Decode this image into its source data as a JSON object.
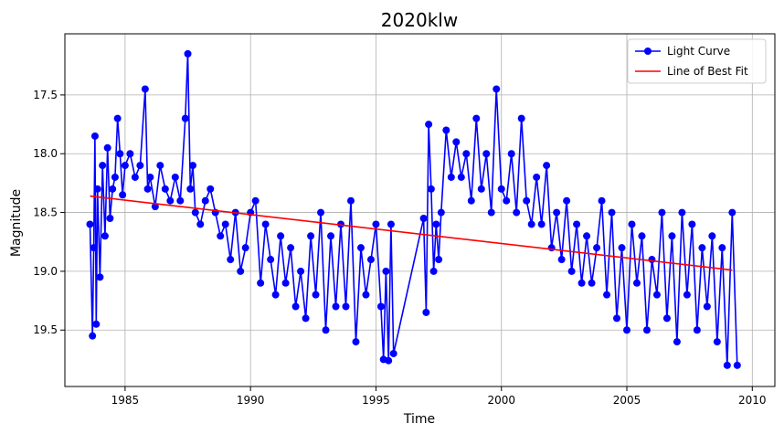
{
  "chart_data": {
    "type": "line",
    "title": "2020klw",
    "xlabel": "Time",
    "ylabel": "Magnitude",
    "xlim": [
      1982.6,
      2010.9
    ],
    "ylim": [
      19.98,
      16.98
    ],
    "y_inverted": true,
    "grid": true,
    "legend_position": "top-right",
    "x_ticks": [
      1985,
      1990,
      1995,
      2000,
      2005,
      2010
    ],
    "x_tick_labels": [
      "1985",
      "1990",
      "1995",
      "2000",
      "2005",
      "2010"
    ],
    "y_ticks": [
      17.5,
      18.0,
      18.5,
      19.0,
      19.5
    ],
    "y_tick_labels": [
      "17.5",
      "18.0",
      "18.5",
      "19.0",
      "19.5"
    ],
    "series": [
      {
        "name": "Light Curve",
        "style": "line-markers",
        "color": "#0000ff",
        "x": [
          1983.6,
          1983.7,
          1983.75,
          1983.8,
          1983.85,
          1983.9,
          1984.0,
          1984.1,
          1984.2,
          1984.3,
          1984.4,
          1984.5,
          1984.6,
          1984.7,
          1984.8,
          1984.9,
          1985.0,
          1985.2,
          1985.4,
          1985.6,
          1985.8,
          1985.9,
          1986.0,
          1986.2,
          1986.4,
          1986.6,
          1986.8,
          1987.0,
          1987.2,
          1987.4,
          1987.5,
          1987.6,
          1987.7,
          1987.8,
          1988.0,
          1988.2,
          1988.4,
          1988.6,
          1988.8,
          1989.0,
          1989.2,
          1989.4,
          1989.6,
          1989.8,
          1990.0,
          1990.2,
          1990.4,
          1990.6,
          1990.8,
          1991.0,
          1991.2,
          1991.4,
          1991.6,
          1991.8,
          1992.0,
          1992.2,
          1992.4,
          1992.6,
          1992.8,
          1993.0,
          1993.2,
          1993.4,
          1993.6,
          1993.8,
          1994.0,
          1994.2,
          1994.4,
          1994.6,
          1994.8,
          1995.0,
          1995.2,
          1995.3,
          1995.4,
          1995.5,
          1995.6,
          1995.7,
          1996.9,
          1997.0,
          1997.1,
          1997.2,
          1997.3,
          1997.4,
          1997.5,
          1997.6,
          1997.8,
          1998.0,
          1998.2,
          1998.4,
          1998.6,
          1998.8,
          1999.0,
          1999.2,
          1999.4,
          1999.6,
          1999.8,
          2000.0,
          2000.2,
          2000.4,
          2000.6,
          2000.8,
          2001.0,
          2001.2,
          2001.4,
          2001.6,
          2001.8,
          2002.0,
          2002.2,
          2002.4,
          2002.6,
          2002.8,
          2003.0,
          2003.2,
          2003.4,
          2003.6,
          2003.8,
          2004.0,
          2004.2,
          2004.4,
          2004.6,
          2004.8,
          2005.0,
          2005.2,
          2005.4,
          2005.6,
          2005.8,
          2006.0,
          2006.2,
          2006.4,
          2006.6,
          2006.8,
          2007.0,
          2007.2,
          2007.4,
          2007.6,
          2007.8,
          2008.0,
          2008.2,
          2008.4,
          2008.6,
          2008.8,
          2009.0,
          2009.2,
          2009.4
        ],
        "y": [
          18.6,
          19.55,
          18.8,
          17.85,
          19.45,
          18.3,
          19.05,
          18.1,
          18.7,
          17.95,
          18.55,
          18.3,
          18.2,
          17.7,
          18.0,
          18.35,
          18.1,
          18.0,
          18.2,
          18.1,
          17.45,
          18.3,
          18.2,
          18.45,
          18.1,
          18.3,
          18.4,
          18.2,
          18.4,
          17.7,
          17.15,
          18.3,
          18.1,
          18.5,
          18.6,
          18.4,
          18.3,
          18.5,
          18.7,
          18.6,
          18.9,
          18.5,
          19.0,
          18.8,
          18.5,
          18.4,
          19.1,
          18.6,
          18.9,
          19.2,
          18.7,
          19.1,
          18.8,
          19.3,
          19.0,
          19.4,
          18.7,
          19.2,
          18.5,
          19.5,
          18.7,
          19.3,
          18.6,
          19.3,
          18.4,
          19.6,
          18.8,
          19.2,
          18.9,
          18.6,
          19.3,
          19.75,
          19.0,
          19.76,
          18.6,
          19.7,
          18.55,
          19.35,
          17.75,
          18.3,
          19.0,
          18.6,
          18.9,
          18.5,
          17.8,
          18.2,
          17.9,
          18.2,
          18.0,
          18.4,
          17.7,
          18.3,
          18.0,
          18.5,
          17.45,
          18.3,
          18.4,
          18.0,
          18.5,
          17.7,
          18.4,
          18.6,
          18.2,
          18.6,
          18.1,
          18.8,
          18.5,
          18.9,
          18.4,
          19.0,
          18.6,
          19.1,
          18.7,
          19.1,
          18.8,
          18.4,
          19.2,
          18.5,
          19.4,
          18.8,
          19.5,
          18.6,
          19.1,
          18.7,
          19.5,
          18.9,
          19.2,
          18.5,
          19.4,
          18.7,
          19.6,
          18.5,
          19.2,
          18.6,
          19.5,
          18.8,
          19.3,
          18.7,
          19.6,
          18.8,
          19.8,
          18.5,
          19.8
        ]
      },
      {
        "name": "Line of Best Fit",
        "style": "line",
        "color": "#ff0000",
        "x": [
          1983.6,
          2009.2
        ],
        "y": [
          18.36,
          18.99
        ]
      }
    ]
  }
}
